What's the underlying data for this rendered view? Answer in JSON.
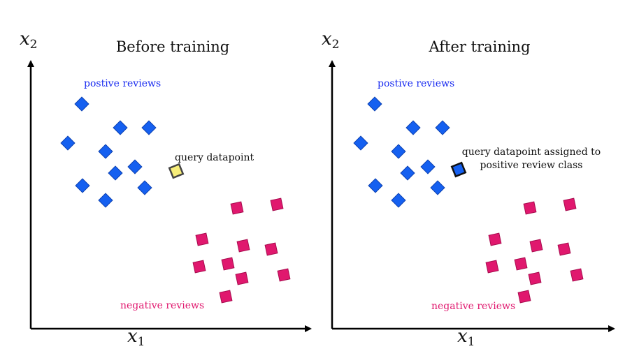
{
  "colors": {
    "positive": "#1560f0",
    "positive_stroke": "#0a3fb0",
    "negative": "#e0186e",
    "negative_stroke": "#a80c4e",
    "query_before": "#f7ee7a",
    "query_after": "#1560f0",
    "axis": "#000000"
  },
  "panels": [
    {
      "title": "Before training",
      "x_axis_label": "x",
      "x_axis_sub": "1",
      "y_axis_label": "x",
      "y_axis_sub": "2",
      "positive_label": "postive reviews",
      "negative_label": "negative reviews",
      "query_label_lines": [
        "query datapoint"
      ],
      "query_state": "unassigned"
    },
    {
      "title": "After training",
      "x_axis_label": "x",
      "x_axis_sub": "1",
      "y_axis_label": "x",
      "y_axis_sub": "2",
      "positive_label": "postive reviews",
      "negative_label": "negative reviews",
      "query_label_lines": [
        "query datapoint assigned to",
        "positive review class"
      ],
      "query_state": "assigned-positive"
    }
  ]
}
